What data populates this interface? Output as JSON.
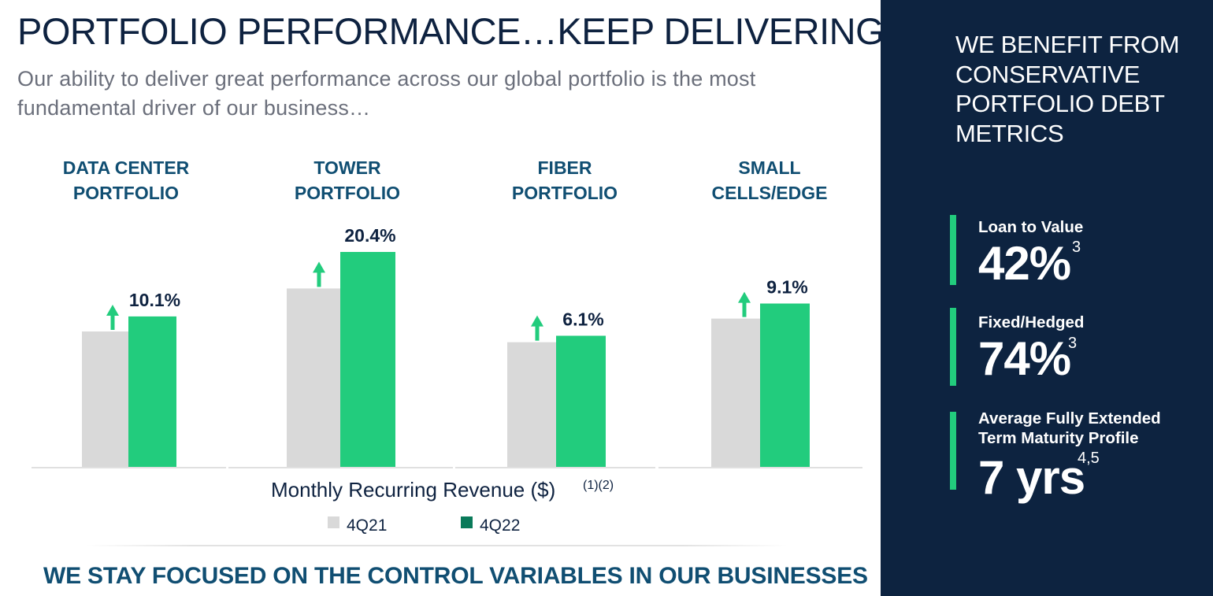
{
  "title": "PORTFOLIO PERFORMANCE…KEEP DELIVERING",
  "subtitle": "Our ability to deliver great performance across our global portfolio is the most fundamental driver of our business…",
  "footer": "WE STAY FOCUSED ON THE CONTROL VARIABLES IN OUR BUSINESSES",
  "colors": {
    "navy": "#0d2340",
    "green": "#22cc7d",
    "gray": "#d9d9d9",
    "teal": "#104e72",
    "legend_green": "#0a7a5a"
  },
  "chart_data": {
    "type": "bar",
    "categories": [
      [
        "DATA CENTER",
        "PORTFOLIO"
      ],
      [
        "TOWER",
        "PORTFOLIO"
      ],
      [
        "FIBER",
        "PORTFOLIO"
      ],
      [
        "SMALL",
        "CELLS/EDGE"
      ]
    ],
    "series": [
      {
        "name": "4Q21",
        "values": [
          63,
          83,
          58,
          69
        ]
      },
      {
        "name": "4Q22",
        "values": [
          70,
          100,
          61,
          76
        ]
      }
    ],
    "growth_labels": [
      "10.1%",
      "20.4%",
      "6.1%",
      "9.1%"
    ],
    "xlabel": "Monthly Recurring Revenue ($)",
    "xlabel_sup": "(1)(2)",
    "legend_position": "bottom",
    "grid": false
  },
  "panel": {
    "title": "WE BENEFIT FROM CONSERVATIVE PORTFOLIO DEBT METRICS",
    "metrics": [
      {
        "label": "Loan to Value",
        "value": "42%",
        "sup": "3"
      },
      {
        "label": "Fixed/Hedged",
        "value": "74%",
        "sup": "3"
      },
      {
        "label_line1": "Average Fully Extended",
        "label_line2": "Term Maturity Profile",
        "value": "7 yrs",
        "sup": "4,5"
      }
    ]
  }
}
